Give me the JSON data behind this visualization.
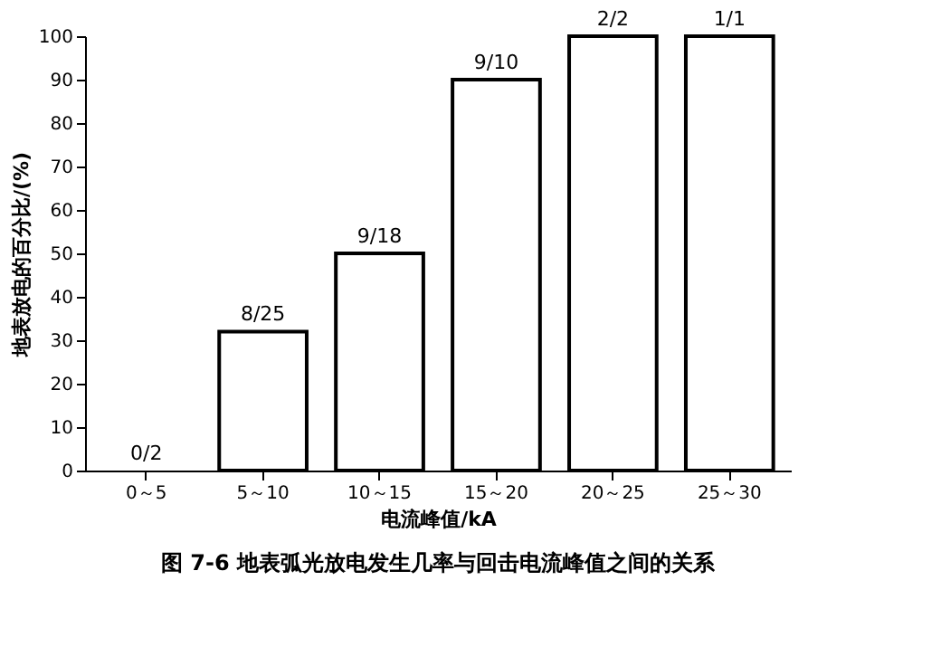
{
  "chart_data": {
    "type": "bar",
    "title": "图 7-6   地表弧光放电发生几率与回击电流峰值之间的关系",
    "xlabel": "电流峰值/kA",
    "ylabel": "地表放电的百分比/(%)",
    "categories": [
      "0～5",
      "5～10",
      "10～15",
      "15～20",
      "20～25",
      "25～30"
    ],
    "values": [
      0,
      32,
      50,
      90,
      100,
      100
    ],
    "color": "#ffffff",
    "ylim": [
      0,
      100
    ],
    "yticks": [
      0,
      10,
      20,
      30,
      40,
      50,
      60,
      70,
      80,
      90,
      100
    ],
    "annotations": [
      {
        "text": "0/2",
        "x": "0～5",
        "y": 0
      },
      {
        "text": "8/25",
        "x": "5～10",
        "y": 32
      },
      {
        "text": "9/18",
        "x": "10～15",
        "y": 50
      },
      {
        "text": "9/10",
        "x": "15～20",
        "y": 90
      },
      {
        "text": "2/2",
        "x": "20～25",
        "y": 100
      },
      {
        "text": "1/1",
        "x": "25～30",
        "y": 100
      }
    ],
    "grid": false
  }
}
